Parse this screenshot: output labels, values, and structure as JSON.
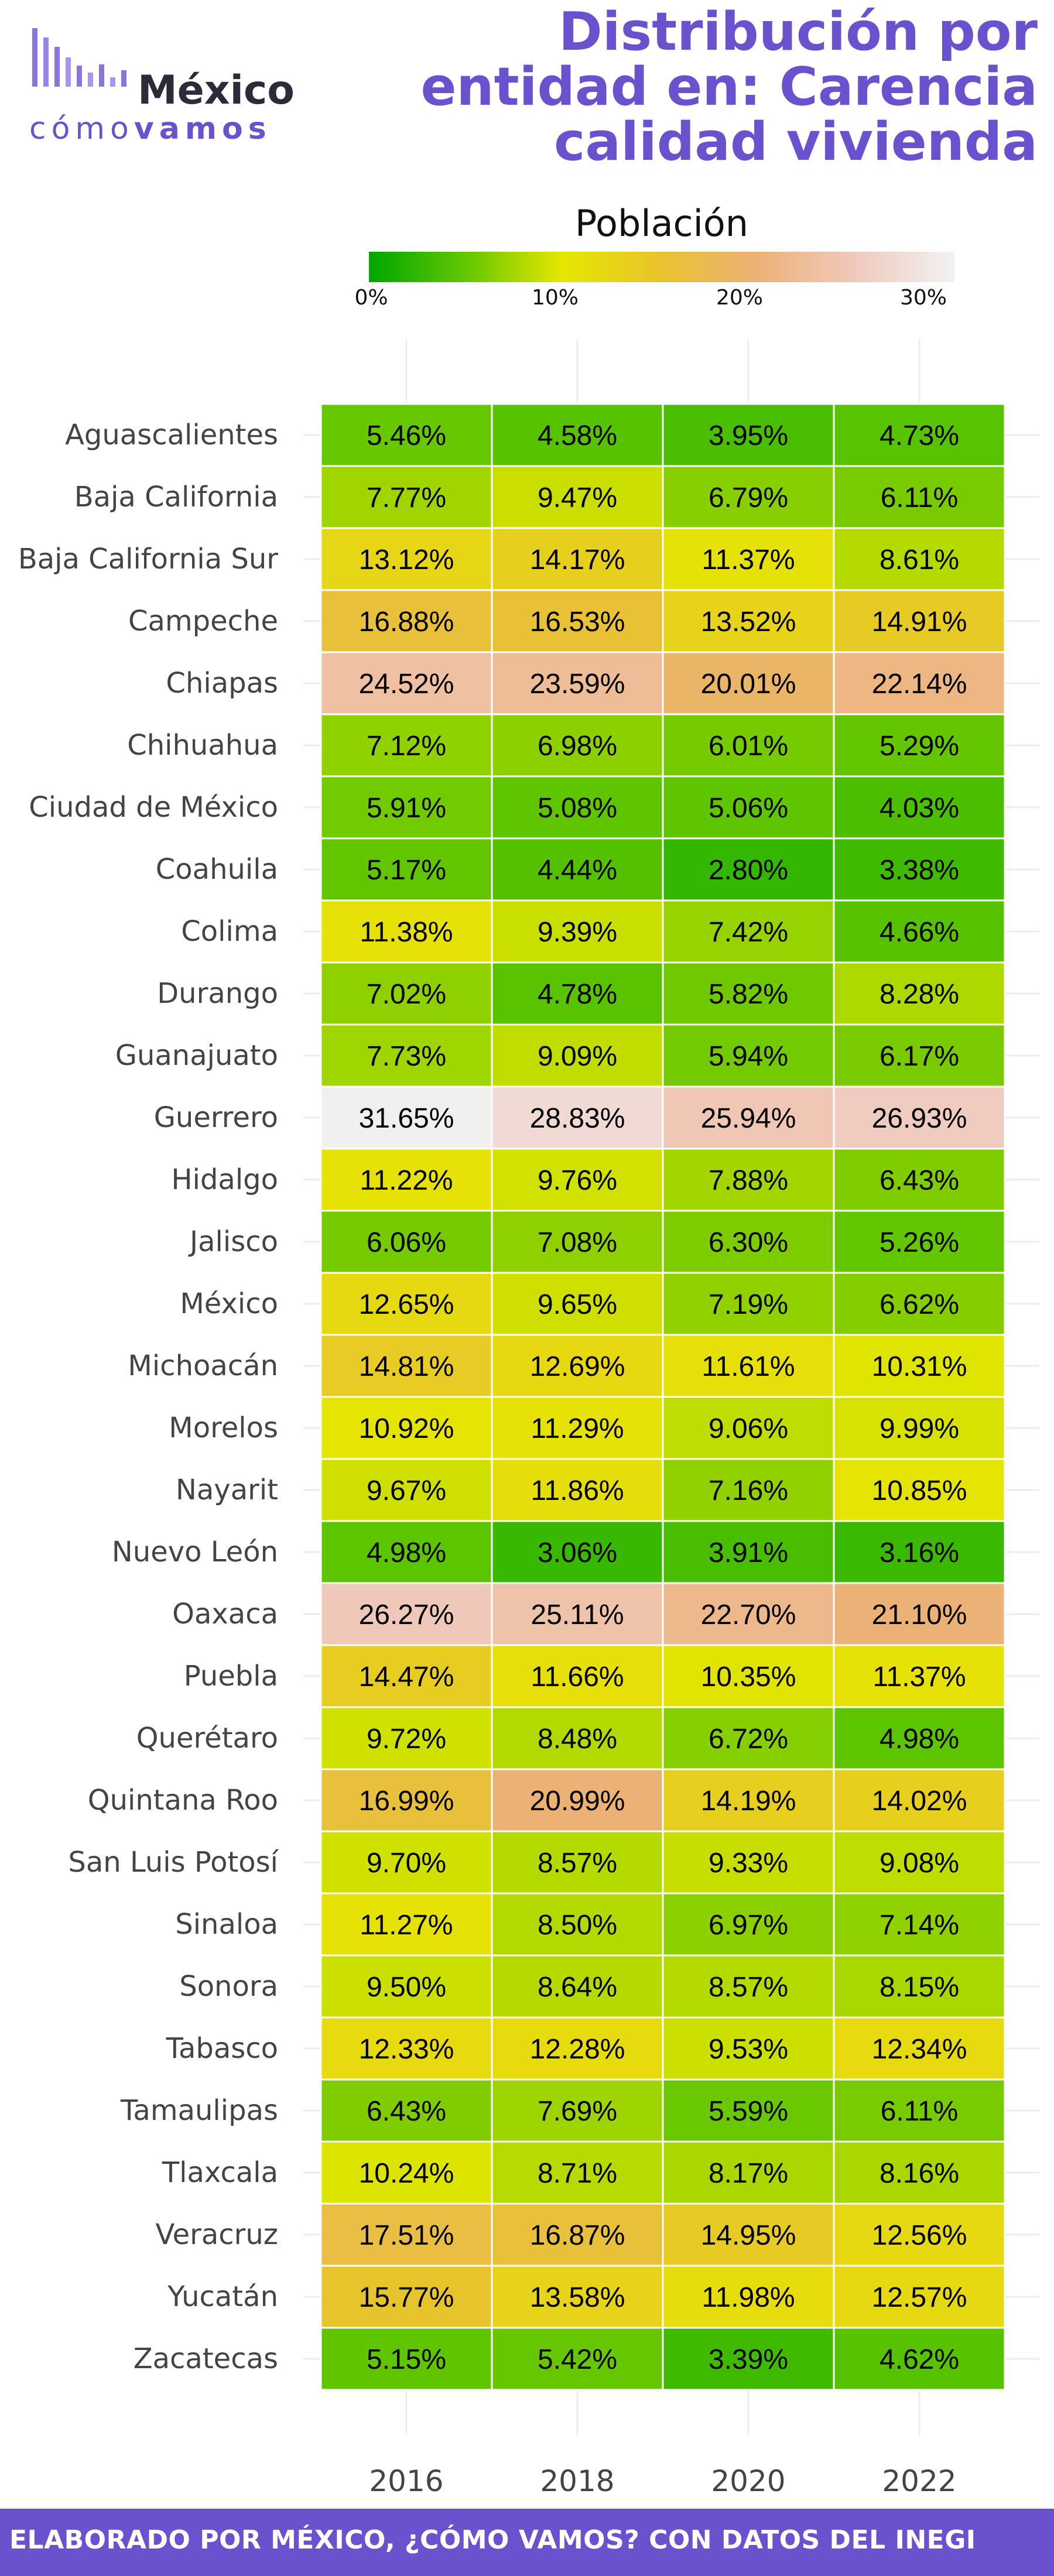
{
  "brand": {
    "name_1": "México",
    "name_2a": "cómo",
    "name_2b": "vamos",
    "color": "#6a52cf"
  },
  "footer_text": "ELABORADO POR MÉXICO, ¿CÓMO VAMOS? CON DATOS DEL INEGI",
  "chart_data": {
    "type": "heatmap",
    "title": "Distribución por entidad en: Carencia calidad vivienda",
    "legend": {
      "title": "Población",
      "ticks": [
        "0%",
        "10%",
        "20%",
        "30%"
      ],
      "range": [
        0,
        32
      ],
      "colors": [
        "#00a600",
        "#e6e600",
        "#eab38d",
        "#f2f2f2"
      ]
    },
    "x": [
      "2016",
      "2018",
      "2020",
      "2022"
    ],
    "y": [
      "Aguascalientes",
      "Baja California",
      "Baja California Sur",
      "Campeche",
      "Chiapas",
      "Chihuahua",
      "Ciudad de México",
      "Coahuila",
      "Colima",
      "Durango",
      "Guanajuato",
      "Guerrero",
      "Hidalgo",
      "Jalisco",
      "México",
      "Michoacán",
      "Morelos",
      "Nayarit",
      "Nuevo León",
      "Oaxaca",
      "Puebla",
      "Querétaro",
      "Quintana Roo",
      "San Luis Potosí",
      "Sinaloa",
      "Sonora",
      "Tabasco",
      "Tamaulipas",
      "Tlaxcala",
      "Veracruz",
      "Yucatán",
      "Zacatecas"
    ],
    "values": [
      [
        5.46,
        4.58,
        3.95,
        4.73
      ],
      [
        7.77,
        9.47,
        6.79,
        6.11
      ],
      [
        13.12,
        14.17,
        11.37,
        8.61
      ],
      [
        16.88,
        16.53,
        13.52,
        14.91
      ],
      [
        24.52,
        23.59,
        20.01,
        22.14
      ],
      [
        7.12,
        6.98,
        6.01,
        5.29
      ],
      [
        5.91,
        5.08,
        5.06,
        4.03
      ],
      [
        5.17,
        4.44,
        2.8,
        3.38
      ],
      [
        11.38,
        9.39,
        7.42,
        4.66
      ],
      [
        7.02,
        4.78,
        5.82,
        8.28
      ],
      [
        7.73,
        9.09,
        5.94,
        6.17
      ],
      [
        31.65,
        28.83,
        25.94,
        26.93
      ],
      [
        11.22,
        9.76,
        7.88,
        6.43
      ],
      [
        6.06,
        7.08,
        6.3,
        5.26
      ],
      [
        12.65,
        9.65,
        7.19,
        6.62
      ],
      [
        14.81,
        12.69,
        11.61,
        10.31
      ],
      [
        10.92,
        11.29,
        9.06,
        9.99
      ],
      [
        9.67,
        11.86,
        7.16,
        10.85
      ],
      [
        4.98,
        3.06,
        3.91,
        3.16
      ],
      [
        26.27,
        25.11,
        22.7,
        21.1
      ],
      [
        14.47,
        11.66,
        10.35,
        11.37
      ],
      [
        9.72,
        8.48,
        6.72,
        4.98
      ],
      [
        16.99,
        20.99,
        14.19,
        14.02
      ],
      [
        9.7,
        8.57,
        9.33,
        9.08
      ],
      [
        11.27,
        8.5,
        6.97,
        7.14
      ],
      [
        9.5,
        8.64,
        8.57,
        8.15
      ],
      [
        12.33,
        12.28,
        9.53,
        12.34
      ],
      [
        6.43,
        7.69,
        5.59,
        6.11
      ],
      [
        10.24,
        8.71,
        8.17,
        8.16
      ],
      [
        17.51,
        16.87,
        14.95,
        12.56
      ],
      [
        15.77,
        13.58,
        11.98,
        12.57
      ],
      [
        5.15,
        5.42,
        3.39,
        4.62
      ]
    ],
    "grid": true
  }
}
